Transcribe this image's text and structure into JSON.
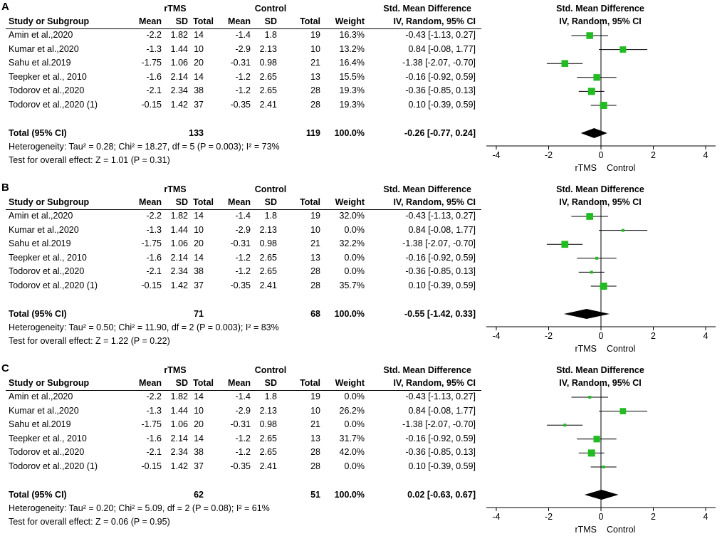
{
  "headers": {
    "study": "Study or Subgroup",
    "group1": "rTMS",
    "group2": "Control",
    "mean": "Mean",
    "sd": "SD",
    "total": "Total",
    "weight": "Weight",
    "effect_title": "Std. Mean Difference",
    "effect_method": "IV, Random, 95% CI",
    "plot_title": "Std. Mean Difference",
    "plot_method": "IV, Random, 95% CI"
  },
  "colors": {
    "marker": "#22bb22",
    "diamond": "#000000",
    "line": "#000000"
  },
  "chart_data": [
    {
      "type": "forest",
      "panel": "A",
      "axis": {
        "ticks": [
          -4,
          -2,
          0,
          2,
          4
        ],
        "tick_labels": [
          "-4",
          "-2",
          "0",
          "2",
          "4"
        ],
        "range": [
          -4,
          4
        ],
        "left_label": "rTMS",
        "right_label": "Control"
      },
      "studies": [
        {
          "name": "Amin et al.,2020",
          "m1": "-2.2",
          "sd1": "1.82",
          "n1": "14",
          "m2": "-1.4",
          "sd2": "1.8",
          "n2": "19",
          "weight": "16.3%",
          "ci_text": "-0.43 [-1.13, 0.27]",
          "est": -0.43,
          "lo": -1.13,
          "hi": 0.27,
          "w": 16.3
        },
        {
          "name": "Kumar et al.,2020",
          "m1": "-1.3",
          "sd1": "1.44",
          "n1": "10",
          "m2": "-2.9",
          "sd2": "2.13",
          "n2": "10",
          "weight": "13.2%",
          "ci_text": "0.84 [-0.08, 1.77]",
          "est": 0.84,
          "lo": -0.08,
          "hi": 1.77,
          "w": 13.2
        },
        {
          "name": "Sahu et al.2019",
          "m1": "-1.75",
          "sd1": "1.06",
          "n1": "20",
          "m2": "-0.31",
          "sd2": "0.98",
          "n2": "21",
          "weight": "16.4%",
          "ci_text": "-1.38 [-2.07, -0.70]",
          "est": -1.38,
          "lo": -2.07,
          "hi": -0.7,
          "w": 16.4
        },
        {
          "name": "Teepker et al., 2010",
          "m1": "-1.6",
          "sd1": "2.14",
          "n1": "14",
          "m2": "-1.2",
          "sd2": "2.65",
          "n2": "13",
          "weight": "15.5%",
          "ci_text": "-0.16 [-0.92, 0.59]",
          "est": -0.16,
          "lo": -0.92,
          "hi": 0.59,
          "w": 15.5
        },
        {
          "name": "Todorov et al.,2020",
          "m1": "-2.1",
          "sd1": "2.34",
          "n1": "38",
          "m2": "-1.2",
          "sd2": "2.65",
          "n2": "28",
          "weight": "19.3%",
          "ci_text": "-0.36 [-0.85, 0.13]",
          "est": -0.36,
          "lo": -0.85,
          "hi": 0.13,
          "w": 19.3
        },
        {
          "name": "Todorov et al.,2020 (1)",
          "m1": "-0.15",
          "sd1": "1.42",
          "n1": "37",
          "m2": "-0.35",
          "sd2": "2.41",
          "n2": "28",
          "weight": "19.3%",
          "ci_text": "0.10 [-0.39, 0.59]",
          "est": 0.1,
          "lo": -0.39,
          "hi": 0.59,
          "w": 19.3
        }
      ],
      "total": {
        "label": "Total (95% CI)",
        "n1": "133",
        "n2": "119",
        "weight": "100.0%",
        "ci_text": "-0.26 [-0.77, 0.24]",
        "est": -0.26,
        "lo": -0.77,
        "hi": 0.24
      },
      "heterogeneity": "Heterogeneity: Tau² = 0.28; Chi² = 18.27, df = 5 (P = 0.003); I² = 73%",
      "overall": "Test for overall effect: Z = 1.01 (P = 0.31)"
    },
    {
      "type": "forest",
      "panel": "B",
      "axis": {
        "ticks": [
          -4,
          -2,
          0,
          2,
          4
        ],
        "tick_labels": [
          "-4",
          "-2",
          "0",
          "2",
          "4"
        ],
        "range": [
          -4,
          4
        ],
        "left_label": "rTMS",
        "right_label": "Control"
      },
      "studies": [
        {
          "name": "Amin et al.,2020",
          "m1": "-2.2",
          "sd1": "1.82",
          "n1": "14",
          "m2": "-1.4",
          "sd2": "1.8",
          "n2": "19",
          "weight": "32.0%",
          "ci_text": "-0.43 [-1.13, 0.27]",
          "est": -0.43,
          "lo": -1.13,
          "hi": 0.27,
          "w": 32.0
        },
        {
          "name": "Kumar et al.,2020",
          "m1": "-1.3",
          "sd1": "1.44",
          "n1": "10",
          "m2": "-2.9",
          "sd2": "2.13",
          "n2": "10",
          "weight": "0.0%",
          "ci_text": "0.84 [-0.08, 1.77]",
          "est": 0.84,
          "lo": -0.08,
          "hi": 1.77,
          "w": 0
        },
        {
          "name": "Sahu et al.2019",
          "m1": "-1.75",
          "sd1": "1.06",
          "n1": "20",
          "m2": "-0.31",
          "sd2": "0.98",
          "n2": "21",
          "weight": "32.2%",
          "ci_text": "-1.38 [-2.07, -0.70]",
          "est": -1.38,
          "lo": -2.07,
          "hi": -0.7,
          "w": 32.2
        },
        {
          "name": "Teepker et al., 2010",
          "m1": "-1.6",
          "sd1": "2.14",
          "n1": "14",
          "m2": "-1.2",
          "sd2": "2.65",
          "n2": "13",
          "weight": "0.0%",
          "ci_text": "-0.16 [-0.92, 0.59]",
          "est": -0.16,
          "lo": -0.92,
          "hi": 0.59,
          "w": 0
        },
        {
          "name": "Todorov et al.,2020",
          "m1": "-2.1",
          "sd1": "2.34",
          "n1": "38",
          "m2": "-1.2",
          "sd2": "2.65",
          "n2": "28",
          "weight": "0.0%",
          "ci_text": "-0.36 [-0.85, 0.13]",
          "est": -0.36,
          "lo": -0.85,
          "hi": 0.13,
          "w": 0
        },
        {
          "name": "Todorov et al.,2020 (1)",
          "m1": "-0.15",
          "sd1": "1.42",
          "n1": "37",
          "m2": "-0.35",
          "sd2": "2.41",
          "n2": "28",
          "weight": "35.7%",
          "ci_text": "0.10 [-0.39, 0.59]",
          "est": 0.1,
          "lo": -0.39,
          "hi": 0.59,
          "w": 35.7
        }
      ],
      "total": {
        "label": "Total (95% CI)",
        "n1": "71",
        "n2": "68",
        "weight": "100.0%",
        "ci_text": "-0.55 [-1.42, 0.33]",
        "est": -0.55,
        "lo": -1.42,
        "hi": 0.33
      },
      "heterogeneity": "Heterogeneity: Tau² = 0.50; Chi² = 11.90, df = 2 (P = 0.003); I² = 83%",
      "overall": "Test for overall effect: Z = 1.22 (P = 0.22)"
    },
    {
      "type": "forest",
      "panel": "C",
      "axis": {
        "ticks": [
          -4,
          -2,
          0,
          2,
          4
        ],
        "tick_labels": [
          "-4",
          "-2",
          "0",
          "2",
          "4"
        ],
        "range": [
          -4,
          4
        ],
        "left_label": "rTMS",
        "right_label": "Control"
      },
      "studies": [
        {
          "name": "Amin et al.,2020",
          "m1": "-2.2",
          "sd1": "1.82",
          "n1": "14",
          "m2": "-1.4",
          "sd2": "1.8",
          "n2": "19",
          "weight": "0.0%",
          "ci_text": "-0.43 [-1.13, 0.27]",
          "est": -0.43,
          "lo": -1.13,
          "hi": 0.27,
          "w": 0
        },
        {
          "name": "Kumar et al.,2020",
          "m1": "-1.3",
          "sd1": "1.44",
          "n1": "10",
          "m2": "-2.9",
          "sd2": "2.13",
          "n2": "10",
          "weight": "26.2%",
          "ci_text": "0.84 [-0.08, 1.77]",
          "est": 0.84,
          "lo": -0.08,
          "hi": 1.77,
          "w": 26.2
        },
        {
          "name": "Sahu et al.2019",
          "m1": "-1.75",
          "sd1": "1.06",
          "n1": "20",
          "m2": "-0.31",
          "sd2": "0.98",
          "n2": "21",
          "weight": "0.0%",
          "ci_text": "-1.38 [-2.07, -0.70]",
          "est": -1.38,
          "lo": -2.07,
          "hi": -0.7,
          "w": 0
        },
        {
          "name": "Teepker et al., 2010",
          "m1": "-1.6",
          "sd1": "2.14",
          "n1": "14",
          "m2": "-1.2",
          "sd2": "2.65",
          "n2": "13",
          "weight": "31.7%",
          "ci_text": "-0.16 [-0.92, 0.59]",
          "est": -0.16,
          "lo": -0.92,
          "hi": 0.59,
          "w": 31.7
        },
        {
          "name": "Todorov et al.,2020",
          "m1": "-2.1",
          "sd1": "2.34",
          "n1": "38",
          "m2": "-1.2",
          "sd2": "2.65",
          "n2": "28",
          "weight": "42.0%",
          "ci_text": "-0.36 [-0.85, 0.13]",
          "est": -0.36,
          "lo": -0.85,
          "hi": 0.13,
          "w": 42.0
        },
        {
          "name": "Todorov et al.,2020 (1)",
          "m1": "-0.15",
          "sd1": "1.42",
          "n1": "37",
          "m2": "-0.35",
          "sd2": "2.41",
          "n2": "28",
          "weight": "0.0%",
          "ci_text": "0.10 [-0.39, 0.59]",
          "est": 0.1,
          "lo": -0.39,
          "hi": 0.59,
          "w": 0
        }
      ],
      "total": {
        "label": "Total (95% CI)",
        "n1": "62",
        "n2": "51",
        "weight": "100.0%",
        "ci_text": "0.02 [-0.63, 0.67]",
        "est": 0.02,
        "lo": -0.63,
        "hi": 0.67
      },
      "heterogeneity": "Heterogeneity: Tau² = 0.20; Chi² = 5.09, df = 2 (P = 0.08); I² = 61%",
      "overall": "Test for overall effect: Z = 0.06 (P = 0.95)"
    }
  ]
}
